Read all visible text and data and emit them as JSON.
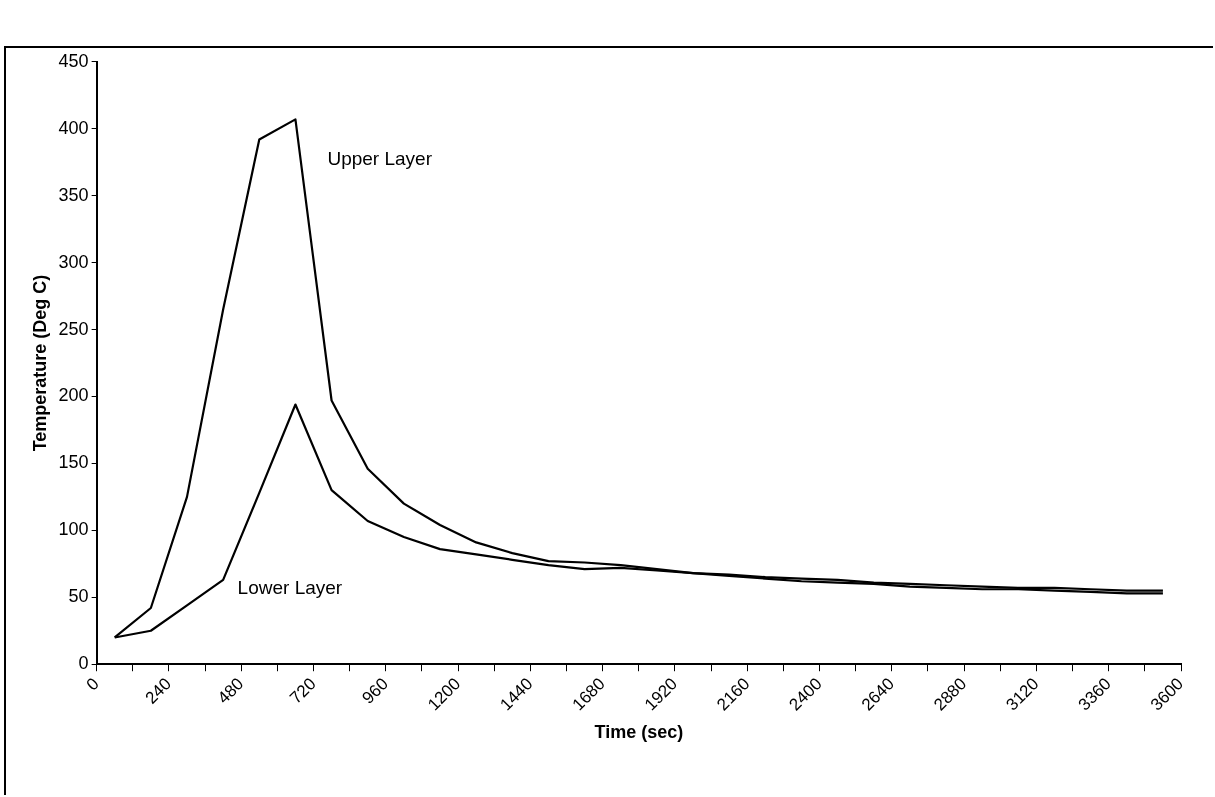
{
  "chart_data": {
    "type": "line",
    "xlabel": "Time (sec)",
    "ylabel": "Temperature (Deg C)",
    "x": [
      60,
      180,
      300,
      420,
      540,
      660,
      780,
      900,
      1020,
      1140,
      1260,
      1380,
      1500,
      1620,
      1740,
      1860,
      1980,
      2100,
      2220,
      2340,
      2460,
      2580,
      2700,
      2820,
      2940,
      3060,
      3180,
      3300,
      3420,
      3540
    ],
    "series": [
      {
        "name": "Upper Layer",
        "color": "#000000",
        "values": [
          20,
          42,
          125,
          265,
          392,
          407,
          197,
          146,
          120,
          104,
          91,
          83,
          77,
          76,
          74,
          71,
          68,
          67,
          65,
          64,
          63,
          61,
          60,
          59,
          58,
          57,
          57,
          56,
          55,
          55
        ]
      },
      {
        "name": "Lower Layer",
        "color": "#000000",
        "values": [
          20,
          25,
          44,
          63,
          128,
          194,
          130,
          107,
          95,
          86,
          82,
          78,
          74,
          71,
          72,
          70,
          68,
          66,
          64,
          62,
          61,
          60,
          58,
          57,
          56,
          56,
          55,
          54,
          53,
          53
        ]
      }
    ],
    "xlim": [
      0,
      3600
    ],
    "xticks": [
      0,
      {
        "value": 120,
        "label": null
      },
      240,
      {
        "value": 360,
        "label": null
      },
      480,
      {
        "value": 600,
        "label": null
      },
      720,
      {
        "value": 840,
        "label": null
      },
      960,
      {
        "value": 1080,
        "label": null
      },
      1200,
      {
        "value": 1320,
        "label": null
      },
      1440,
      {
        "value": 1560,
        "label": null
      },
      1680,
      {
        "value": 1800,
        "label": null
      },
      1920,
      {
        "value": 2040,
        "label": null
      },
      2160,
      {
        "value": 2280,
        "label": null
      },
      2400,
      {
        "value": 2520,
        "label": null
      },
      2640,
      {
        "value": 2760,
        "label": null
      },
      2880,
      {
        "value": 3000,
        "label": null
      },
      3120,
      {
        "value": 3240,
        "label": null
      },
      3360,
      {
        "value": 3480,
        "label": null
      },
      3600
    ],
    "ylim": [
      0,
      450
    ],
    "yticks": [
      0,
      50,
      100,
      150,
      200,
      250,
      300,
      350,
      400,
      450
    ],
    "grid": false,
    "legend": false,
    "marker": "none",
    "line_style": "solid"
  }
}
